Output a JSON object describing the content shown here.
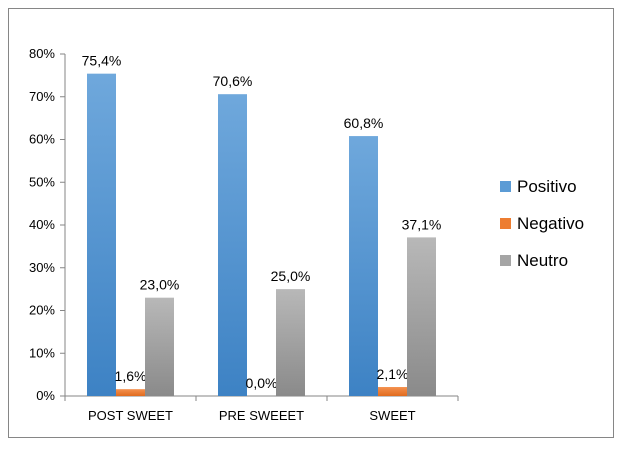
{
  "chart_data": {
    "type": "bar",
    "categories": [
      "POST SWEET",
      "PRE SWEEET",
      "SWEET"
    ],
    "series": [
      {
        "name": "Positivo",
        "values": [
          75.4,
          70.6,
          60.8
        ],
        "labels": [
          "75,4%",
          "70,6%",
          "60,8%"
        ],
        "color": "#5b9bd5"
      },
      {
        "name": "Negativo",
        "values": [
          1.6,
          0.0,
          2.1
        ],
        "labels": [
          "1,6%",
          "0,0%",
          "2,1%"
        ],
        "color": "#ed7d31"
      },
      {
        "name": "Neutro",
        "values": [
          23.0,
          25.0,
          37.1
        ],
        "labels": [
          "23,0%",
          "25,0%",
          "37,1%"
        ],
        "color": "#a5a5a5"
      }
    ],
    "y_ticks": [
      "0%",
      "10%",
      "20%",
      "30%",
      "40%",
      "50%",
      "60%",
      "70%",
      "80%"
    ],
    "ylim": [
      0,
      80
    ],
    "grid": false,
    "legend_position": "right"
  }
}
